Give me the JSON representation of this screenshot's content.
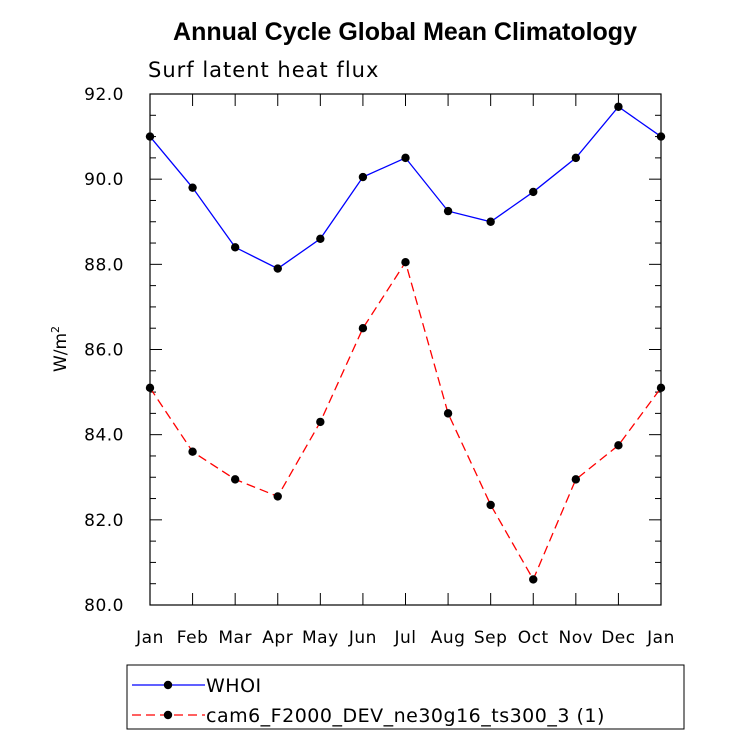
{
  "chart_data": {
    "type": "line",
    "title": "Annual Cycle Global Mean Climatology",
    "subtitle": "Surf latent heat flux",
    "ylabel": "W/m",
    "ylabel_superscript": "2",
    "ylim": [
      80.0,
      92.0
    ],
    "yticks": [
      "80.0",
      "82.0",
      "84.0",
      "86.0",
      "88.0",
      "90.0",
      "92.0"
    ],
    "categories": [
      "Jan",
      "Feb",
      "Mar",
      "Apr",
      "May",
      "Jun",
      "Jul",
      "Aug",
      "Sep",
      "Oct",
      "Nov",
      "Dec",
      "Jan"
    ],
    "grid": false,
    "legend_position": "bottom",
    "series": [
      {
        "name": "WHOI",
        "color": "#0000ff",
        "style": "solid",
        "values": [
          91.0,
          89.8,
          88.4,
          87.9,
          88.6,
          90.05,
          90.5,
          89.25,
          89.0,
          89.7,
          90.5,
          91.7,
          91.0
        ]
      },
      {
        "name": "cam6_F2000_DEV_ne30g16_ts300_3 (1)",
        "color": "#ff0000",
        "style": "dashed",
        "values": [
          85.1,
          83.6,
          82.95,
          82.55,
          84.3,
          86.5,
          88.05,
          84.5,
          82.35,
          80.6,
          82.95,
          83.75,
          85.1
        ]
      }
    ]
  }
}
